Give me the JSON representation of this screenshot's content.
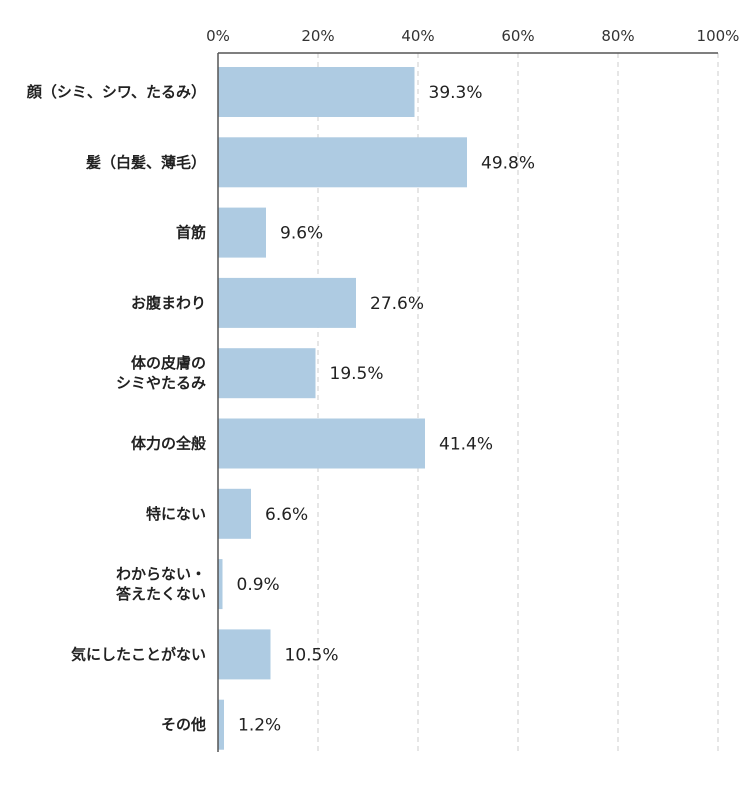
{
  "chart_data": {
    "type": "bar",
    "orientation": "horizontal",
    "categories": [
      [
        "顔（シミ、シワ、たるみ）"
      ],
      [
        "髪（白髪、薄毛）"
      ],
      [
        "首筋"
      ],
      [
        "お腹まわり"
      ],
      [
        "体の皮膚の",
        "シミやたるみ"
      ],
      [
        "体力の全般"
      ],
      [
        "特にない"
      ],
      [
        "わからない・",
        "答えたくない"
      ],
      [
        "気にしたことがない"
      ],
      [
        "その他"
      ]
    ],
    "values": [
      39.3,
      49.8,
      9.6,
      27.6,
      19.5,
      41.4,
      6.6,
      0.9,
      10.5,
      1.2
    ],
    "value_labels": [
      "39.3%",
      "49.8%",
      "9.6%",
      "27.6%",
      "19.5%",
      "41.4%",
      "6.6%",
      "0.9%",
      "10.5%",
      "1.2%"
    ],
    "xlim": [
      0,
      100
    ],
    "x_ticks": [
      0,
      20,
      40,
      60,
      80,
      100
    ],
    "x_tick_labels": [
      "0%",
      "20%",
      "40%",
      "60%",
      "80%",
      "100%"
    ],
    "x_axis_position": "top",
    "grid": true,
    "bar_color": "#aecbe2",
    "grid_color": "#cccccc",
    "axis_color": "#555555"
  }
}
